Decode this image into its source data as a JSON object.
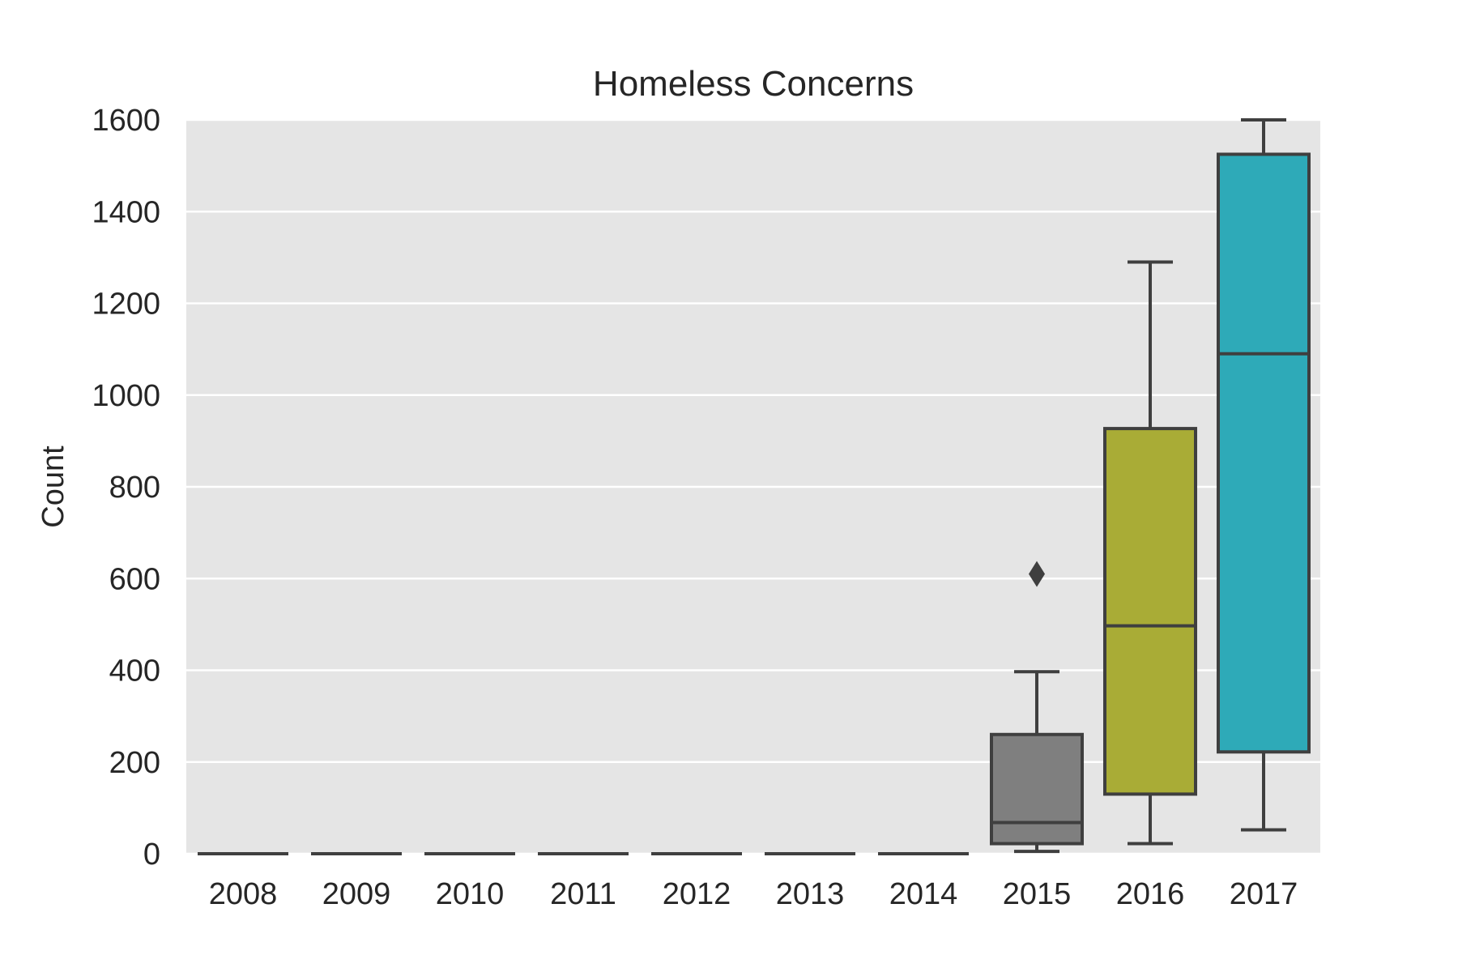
{
  "chart_data": {
    "type": "box",
    "title": "Homeless Concerns",
    "xlabel": "",
    "ylabel": "Count",
    "ylim": [
      0,
      1600
    ],
    "yticks": [
      0,
      200,
      400,
      600,
      800,
      1000,
      1200,
      1400,
      1600
    ],
    "grid": true,
    "categories": [
      "2008",
      "2009",
      "2010",
      "2011",
      "2012",
      "2013",
      "2014",
      "2015",
      "2016",
      "2017"
    ],
    "boxes": [
      {
        "category": "2008",
        "whisker_low": 0,
        "q1": 0,
        "median": 0,
        "q3": 0,
        "whisker_high": 0,
        "outliers": [],
        "color": "#3274a1"
      },
      {
        "category": "2009",
        "whisker_low": 0,
        "q1": 0,
        "median": 0,
        "q3": 0,
        "whisker_high": 0,
        "outliers": [],
        "color": "#e1812c"
      },
      {
        "category": "2010",
        "whisker_low": 0,
        "q1": 0,
        "median": 0,
        "q3": 0,
        "whisker_high": 0,
        "outliers": [],
        "color": "#3a923a"
      },
      {
        "category": "2011",
        "whisker_low": 0,
        "q1": 0,
        "median": 0,
        "q3": 0,
        "whisker_high": 0,
        "outliers": [],
        "color": "#c03d3e"
      },
      {
        "category": "2012",
        "whisker_low": 0,
        "q1": 0,
        "median": 0,
        "q3": 0,
        "whisker_high": 0,
        "outliers": [],
        "color": "#9372b2"
      },
      {
        "category": "2013",
        "whisker_low": 0,
        "q1": 0,
        "median": 0,
        "q3": 0,
        "whisker_high": 0,
        "outliers": [],
        "color": "#845b53"
      },
      {
        "category": "2014",
        "whisker_low": 0,
        "q1": 0,
        "median": 0,
        "q3": 0,
        "whisker_high": 0,
        "outliers": [],
        "color": "#d684bd"
      },
      {
        "category": "2015",
        "whisker_low": 5,
        "q1": 22,
        "median": 68,
        "q3": 260,
        "whisker_high": 397,
        "outliers": [
          610
        ],
        "color": "#7f7f7f"
      },
      {
        "category": "2016",
        "whisker_low": 22,
        "q1": 130,
        "median": 497,
        "q3": 927,
        "whisker_high": 1290,
        "outliers": [],
        "color": "#a9ac36"
      },
      {
        "category": "2017",
        "whisker_low": 52,
        "q1": 222,
        "median": 1090,
        "q3": 1525,
        "whisker_high": 1600,
        "outliers": [],
        "color": "#2eaab8"
      }
    ],
    "colors": {
      "plot_background": "#e5e5e5",
      "gridline": "#ffffff",
      "line": "#3f3f3f"
    }
  }
}
